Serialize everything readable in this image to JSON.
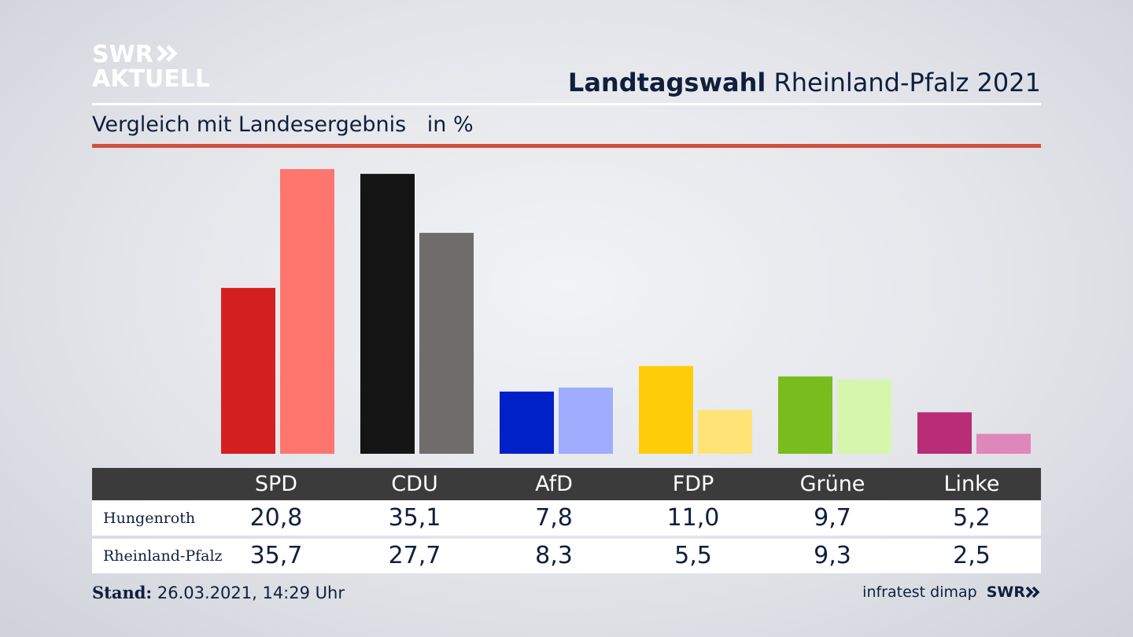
{
  "branding": {
    "logo_line1": "SWR",
    "logo_line2": "AKTUELL",
    "footer_logo": "SWR"
  },
  "header": {
    "title_bold": "Landtagswahl",
    "title_rest": "Rheinland-Pfalz 2021",
    "subtitle": "Vergleich mit Landesergebnis",
    "unit": "in %"
  },
  "colors": {
    "accent_rule": "#d2503c",
    "header_bar": "#3b3b3b",
    "text": "#0f1f3d"
  },
  "chart_data": {
    "type": "bar",
    "categories": [
      "SPD",
      "CDU",
      "AfD",
      "FDP",
      "Grüne",
      "Linke"
    ],
    "ylim": [
      0,
      36
    ],
    "series": [
      {
        "name": "Hungenroth",
        "values": [
          20.8,
          35.1,
          7.8,
          11.0,
          9.7,
          5.2
        ],
        "colors": [
          "#d42020",
          "#141414",
          "#0020c8",
          "#ffcc0a",
          "#78bc1e",
          "#b92c76"
        ]
      },
      {
        "name": "Rheinland-Pfalz",
        "values": [
          35.7,
          27.7,
          8.3,
          5.5,
          9.3,
          2.5
        ],
        "colors": [
          "#ff766e",
          "#6e6d6c",
          "#9eadfd",
          "#ffe376",
          "#d5f6ac",
          "#df87b9"
        ]
      }
    ]
  },
  "table": {
    "headers": [
      "SPD",
      "CDU",
      "AfD",
      "FDP",
      "Grüne",
      "Linke"
    ],
    "rows": [
      {
        "label": "Hungenroth",
        "values": [
          "20,8",
          "35,1",
          "7,8",
          "11,0",
          "9,7",
          "5,2"
        ]
      },
      {
        "label": "Rheinland-Pfalz",
        "values": [
          "35,7",
          "27,7",
          "8,3",
          "5,5",
          "9,3",
          "2,5"
        ]
      }
    ]
  },
  "footer": {
    "stand_label": "Stand:",
    "stand_value": "26.03.2021, 14:29 Uhr",
    "source": "infratest dimap"
  }
}
